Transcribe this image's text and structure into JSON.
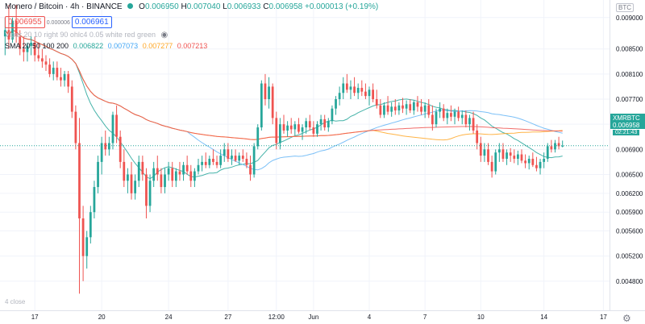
{
  "header": {
    "title": "Monero / Bitcoin · 4h · BINANCE",
    "open_label": "O",
    "open": "0.006950",
    "high_label": "H",
    "high": "0.007040",
    "low_label": "L",
    "low": "0.006933",
    "close_label": "C",
    "close": "0.006958",
    "change": "+0.000013 (+0.19%)",
    "bid": "0.006955",
    "spread": "0.000006",
    "ask": "0.006961",
    "viper_text": "Viper 20 10 right 90 ohlc4 0.05 white red green",
    "sma_label": "SMA 20 50 100 200",
    "sma_values": [
      "0.006822",
      "0.007073",
      "0.007277",
      "0.007213"
    ]
  },
  "axis": {
    "currency": "BTC",
    "last_symbol": "XMRBTC",
    "last_price": "0.006958",
    "countdown": "02:21:43"
  },
  "bottom_note": "4 close",
  "colors": {
    "up": "#26a69a",
    "down": "#ef5350",
    "sma20": "#26a69a",
    "sma50": "#64b5f6",
    "sma100": "#ffa726",
    "sma200": "#ef5350"
  },
  "chart_data": {
    "type": "candlestick",
    "symbol": "XMRBTC",
    "timeframe": "4h",
    "exchange": "BINANCE",
    "ylim": [
      0.0044,
      0.0091
    ],
    "yticks": [
      0.009,
      0.0085,
      0.0081,
      0.0077,
      0.0073,
      0.0069,
      0.0065,
      0.0062,
      0.0059,
      0.0056,
      0.0052,
      0.0048
    ],
    "ytick_labels": [
      "0.009000",
      "0.008500",
      "0.008100",
      "0.007700",
      "0.007300",
      "0.006900",
      "0.006500",
      "0.006200",
      "0.005900",
      "0.005600",
      "0.005200",
      "0.004800"
    ],
    "xticks": [
      {
        "i": 8,
        "label": "17"
      },
      {
        "i": 26,
        "label": "20"
      },
      {
        "i": 44,
        "label": "24"
      },
      {
        "i": 60,
        "label": "27"
      },
      {
        "i": 73,
        "label": "12:00"
      },
      {
        "i": 83,
        "label": "Jun"
      },
      {
        "i": 98,
        "label": "4"
      },
      {
        "i": 113,
        "label": "7"
      },
      {
        "i": 128,
        "label": "10"
      },
      {
        "i": 145,
        "label": "14"
      },
      {
        "i": 161,
        "label": "17"
      }
    ],
    "candles": [
      {
        "o": 0.0087,
        "h": 0.009,
        "l": 0.0084,
        "c": 0.0088
      },
      {
        "o": 0.0088,
        "h": 0.0092,
        "l": 0.0085,
        "c": 0.00865
      },
      {
        "o": 0.00865,
        "h": 0.009,
        "l": 0.0086,
        "c": 0.00895
      },
      {
        "o": 0.00895,
        "h": 0.0092,
        "l": 0.0086,
        "c": 0.0087
      },
      {
        "o": 0.0087,
        "h": 0.0088,
        "l": 0.0084,
        "c": 0.0085
      },
      {
        "o": 0.0085,
        "h": 0.0087,
        "l": 0.0083,
        "c": 0.00845
      },
      {
        "o": 0.00845,
        "h": 0.0086,
        "l": 0.0083,
        "c": 0.00855
      },
      {
        "o": 0.00855,
        "h": 0.0087,
        "l": 0.0084,
        "c": 0.0086
      },
      {
        "o": 0.0086,
        "h": 0.0087,
        "l": 0.0083,
        "c": 0.0084
      },
      {
        "o": 0.0084,
        "h": 0.0086,
        "l": 0.0083,
        "c": 0.00835
      },
      {
        "o": 0.00835,
        "h": 0.0085,
        "l": 0.0082,
        "c": 0.0083
      },
      {
        "o": 0.0083,
        "h": 0.0084,
        "l": 0.00815,
        "c": 0.00825
      },
      {
        "o": 0.00825,
        "h": 0.00835,
        "l": 0.00805,
        "c": 0.0081
      },
      {
        "o": 0.0081,
        "h": 0.0083,
        "l": 0.008,
        "c": 0.0082
      },
      {
        "o": 0.0082,
        "h": 0.0083,
        "l": 0.008,
        "c": 0.00805
      },
      {
        "o": 0.00805,
        "h": 0.0082,
        "l": 0.0079,
        "c": 0.008
      },
      {
        "o": 0.008,
        "h": 0.00815,
        "l": 0.0079,
        "c": 0.0081
      },
      {
        "o": 0.0081,
        "h": 0.00815,
        "l": 0.0078,
        "c": 0.0079
      },
      {
        "o": 0.0079,
        "h": 0.008,
        "l": 0.0074,
        "c": 0.0075
      },
      {
        "o": 0.0075,
        "h": 0.0076,
        "l": 0.0069,
        "c": 0.007
      },
      {
        "o": 0.007,
        "h": 0.0074,
        "l": 0.0046,
        "c": 0.0058
      },
      {
        "o": 0.0058,
        "h": 0.006,
        "l": 0.0048,
        "c": 0.0052
      },
      {
        "o": 0.0052,
        "h": 0.0056,
        "l": 0.005,
        "c": 0.0055
      },
      {
        "o": 0.0055,
        "h": 0.006,
        "l": 0.0054,
        "c": 0.0059
      },
      {
        "o": 0.0059,
        "h": 0.0064,
        "l": 0.0058,
        "c": 0.0063
      },
      {
        "o": 0.0063,
        "h": 0.0068,
        "l": 0.0062,
        "c": 0.0067
      },
      {
        "o": 0.0067,
        "h": 0.0071,
        "l": 0.0065,
        "c": 0.007
      },
      {
        "o": 0.007,
        "h": 0.0072,
        "l": 0.0068,
        "c": 0.0069
      },
      {
        "o": 0.0069,
        "h": 0.0071,
        "l": 0.0068,
        "c": 0.007
      },
      {
        "o": 0.007,
        "h": 0.0075,
        "l": 0.0069,
        "c": 0.00745
      },
      {
        "o": 0.00745,
        "h": 0.0076,
        "l": 0.007,
        "c": 0.0071
      },
      {
        "o": 0.0071,
        "h": 0.0072,
        "l": 0.0066,
        "c": 0.0067
      },
      {
        "o": 0.0067,
        "h": 0.0069,
        "l": 0.0063,
        "c": 0.0064
      },
      {
        "o": 0.0064,
        "h": 0.0066,
        "l": 0.0062,
        "c": 0.0065
      },
      {
        "o": 0.0065,
        "h": 0.0067,
        "l": 0.0061,
        "c": 0.0062
      },
      {
        "o": 0.0062,
        "h": 0.0065,
        "l": 0.0061,
        "c": 0.0064
      },
      {
        "o": 0.0064,
        "h": 0.0068,
        "l": 0.0063,
        "c": 0.0067
      },
      {
        "o": 0.0067,
        "h": 0.0068,
        "l": 0.0064,
        "c": 0.0065
      },
      {
        "o": 0.0065,
        "h": 0.0066,
        "l": 0.0058,
        "c": 0.006
      },
      {
        "o": 0.006,
        "h": 0.0065,
        "l": 0.0059,
        "c": 0.0064
      },
      {
        "o": 0.0064,
        "h": 0.0067,
        "l": 0.0063,
        "c": 0.0066
      },
      {
        "o": 0.0066,
        "h": 0.0068,
        "l": 0.0064,
        "c": 0.0065
      },
      {
        "o": 0.0065,
        "h": 0.0066,
        "l": 0.0062,
        "c": 0.0063
      },
      {
        "o": 0.0063,
        "h": 0.0066,
        "l": 0.0062,
        "c": 0.0065
      },
      {
        "o": 0.0065,
        "h": 0.0067,
        "l": 0.0064,
        "c": 0.0066
      },
      {
        "o": 0.0066,
        "h": 0.0067,
        "l": 0.0063,
        "c": 0.0064
      },
      {
        "o": 0.0064,
        "h": 0.0066,
        "l": 0.0063,
        "c": 0.00655
      },
      {
        "o": 0.00655,
        "h": 0.0067,
        "l": 0.0064,
        "c": 0.0065
      },
      {
        "o": 0.0065,
        "h": 0.0067,
        "l": 0.0064,
        "c": 0.00665
      },
      {
        "o": 0.00665,
        "h": 0.0068,
        "l": 0.0065,
        "c": 0.00655
      },
      {
        "o": 0.00655,
        "h": 0.00665,
        "l": 0.0063,
        "c": 0.0064
      },
      {
        "o": 0.0064,
        "h": 0.0066,
        "l": 0.0063,
        "c": 0.00655
      },
      {
        "o": 0.00655,
        "h": 0.00675,
        "l": 0.0065,
        "c": 0.00665
      },
      {
        "o": 0.00665,
        "h": 0.0068,
        "l": 0.00655,
        "c": 0.0067
      },
      {
        "o": 0.0067,
        "h": 0.00685,
        "l": 0.0066,
        "c": 0.00665
      },
      {
        "o": 0.00665,
        "h": 0.0068,
        "l": 0.0066,
        "c": 0.00675
      },
      {
        "o": 0.00675,
        "h": 0.0069,
        "l": 0.00665,
        "c": 0.0067
      },
      {
        "o": 0.0067,
        "h": 0.0068,
        "l": 0.0066,
        "c": 0.00665
      },
      {
        "o": 0.00665,
        "h": 0.0069,
        "l": 0.0066,
        "c": 0.0068
      },
      {
        "o": 0.0068,
        "h": 0.007,
        "l": 0.0067,
        "c": 0.0069
      },
      {
        "o": 0.0069,
        "h": 0.007,
        "l": 0.0067,
        "c": 0.00675
      },
      {
        "o": 0.00675,
        "h": 0.0069,
        "l": 0.00665,
        "c": 0.0068
      },
      {
        "o": 0.0068,
        "h": 0.0069,
        "l": 0.0067,
        "c": 0.00672
      },
      {
        "o": 0.00672,
        "h": 0.00685,
        "l": 0.00665,
        "c": 0.0068
      },
      {
        "o": 0.0068,
        "h": 0.0069,
        "l": 0.0067,
        "c": 0.00675
      },
      {
        "o": 0.00675,
        "h": 0.00685,
        "l": 0.0066,
        "c": 0.00665
      },
      {
        "o": 0.00665,
        "h": 0.0068,
        "l": 0.0064,
        "c": 0.0065
      },
      {
        "o": 0.0065,
        "h": 0.007,
        "l": 0.00645,
        "c": 0.00695
      },
      {
        "o": 0.00695,
        "h": 0.0073,
        "l": 0.0069,
        "c": 0.00725
      },
      {
        "o": 0.00725,
        "h": 0.008,
        "l": 0.0072,
        "c": 0.00795
      },
      {
        "o": 0.00795,
        "h": 0.0081,
        "l": 0.0076,
        "c": 0.0077
      },
      {
        "o": 0.0077,
        "h": 0.00805,
        "l": 0.00755,
        "c": 0.0079
      },
      {
        "o": 0.0079,
        "h": 0.00795,
        "l": 0.0073,
        "c": 0.0074
      },
      {
        "o": 0.0074,
        "h": 0.0075,
        "l": 0.0069,
        "c": 0.007
      },
      {
        "o": 0.007,
        "h": 0.0074,
        "l": 0.0069,
        "c": 0.0073
      },
      {
        "o": 0.0073,
        "h": 0.00745,
        "l": 0.00715,
        "c": 0.0072
      },
      {
        "o": 0.0072,
        "h": 0.00735,
        "l": 0.0071,
        "c": 0.00728
      },
      {
        "o": 0.00728,
        "h": 0.0074,
        "l": 0.00715,
        "c": 0.00722
      },
      {
        "o": 0.00722,
        "h": 0.00735,
        "l": 0.00712,
        "c": 0.0073
      },
      {
        "o": 0.0073,
        "h": 0.0074,
        "l": 0.00715,
        "c": 0.00718
      },
      {
        "o": 0.00718,
        "h": 0.0073,
        "l": 0.00705,
        "c": 0.00725
      },
      {
        "o": 0.00725,
        "h": 0.0074,
        "l": 0.00715,
        "c": 0.00735
      },
      {
        "o": 0.00735,
        "h": 0.00745,
        "l": 0.0072,
        "c": 0.00725
      },
      {
        "o": 0.00725,
        "h": 0.00735,
        "l": 0.0071,
        "c": 0.00715
      },
      {
        "o": 0.00715,
        "h": 0.00735,
        "l": 0.0071,
        "c": 0.0073
      },
      {
        "o": 0.0073,
        "h": 0.00745,
        "l": 0.0072,
        "c": 0.00738
      },
      {
        "o": 0.00738,
        "h": 0.00745,
        "l": 0.0072,
        "c": 0.00725
      },
      {
        "o": 0.00725,
        "h": 0.0074,
        "l": 0.00718,
        "c": 0.00735
      },
      {
        "o": 0.00735,
        "h": 0.0076,
        "l": 0.0073,
        "c": 0.00755
      },
      {
        "o": 0.00755,
        "h": 0.00775,
        "l": 0.00745,
        "c": 0.0077
      },
      {
        "o": 0.0077,
        "h": 0.0079,
        "l": 0.0076,
        "c": 0.0078
      },
      {
        "o": 0.0078,
        "h": 0.00805,
        "l": 0.0077,
        "c": 0.00795
      },
      {
        "o": 0.00795,
        "h": 0.0081,
        "l": 0.0078,
        "c": 0.00785
      },
      {
        "o": 0.00785,
        "h": 0.008,
        "l": 0.0077,
        "c": 0.0079
      },
      {
        "o": 0.0079,
        "h": 0.00805,
        "l": 0.00775,
        "c": 0.0078
      },
      {
        "o": 0.0078,
        "h": 0.00795,
        "l": 0.0077,
        "c": 0.00788
      },
      {
        "o": 0.00788,
        "h": 0.008,
        "l": 0.00775,
        "c": 0.00782
      },
      {
        "o": 0.00782,
        "h": 0.00795,
        "l": 0.0077,
        "c": 0.00775
      },
      {
        "o": 0.00775,
        "h": 0.0079,
        "l": 0.0076,
        "c": 0.00785
      },
      {
        "o": 0.00785,
        "h": 0.00795,
        "l": 0.00765,
        "c": 0.0077
      },
      {
        "o": 0.0077,
        "h": 0.00785,
        "l": 0.00755,
        "c": 0.0076
      },
      {
        "o": 0.0076,
        "h": 0.0077,
        "l": 0.0074,
        "c": 0.00745
      },
      {
        "o": 0.00745,
        "h": 0.00765,
        "l": 0.0074,
        "c": 0.0076
      },
      {
        "o": 0.0076,
        "h": 0.00775,
        "l": 0.00745,
        "c": 0.0075
      },
      {
        "o": 0.0075,
        "h": 0.00765,
        "l": 0.00742,
        "c": 0.00758
      },
      {
        "o": 0.00758,
        "h": 0.0077,
        "l": 0.00745,
        "c": 0.00752
      },
      {
        "o": 0.00752,
        "h": 0.00765,
        "l": 0.00745,
        "c": 0.0076
      },
      {
        "o": 0.0076,
        "h": 0.00772,
        "l": 0.00748,
        "c": 0.00755
      },
      {
        "o": 0.00755,
        "h": 0.00768,
        "l": 0.00745,
        "c": 0.00762
      },
      {
        "o": 0.00762,
        "h": 0.0077,
        "l": 0.00748,
        "c": 0.00752
      },
      {
        "o": 0.00752,
        "h": 0.00768,
        "l": 0.00745,
        "c": 0.00765
      },
      {
        "o": 0.00765,
        "h": 0.00775,
        "l": 0.0075,
        "c": 0.00758
      },
      {
        "o": 0.00758,
        "h": 0.0077,
        "l": 0.00745,
        "c": 0.0075
      },
      {
        "o": 0.0075,
        "h": 0.00765,
        "l": 0.0074,
        "c": 0.0076
      },
      {
        "o": 0.0076,
        "h": 0.0077,
        "l": 0.0074,
        "c": 0.00745
      },
      {
        "o": 0.00745,
        "h": 0.0076,
        "l": 0.0072,
        "c": 0.0073
      },
      {
        "o": 0.0073,
        "h": 0.00755,
        "l": 0.00725,
        "c": 0.0075
      },
      {
        "o": 0.0075,
        "h": 0.00765,
        "l": 0.0074,
        "c": 0.00755
      },
      {
        "o": 0.00755,
        "h": 0.00762,
        "l": 0.00735,
        "c": 0.0074
      },
      {
        "o": 0.0074,
        "h": 0.00755,
        "l": 0.0073,
        "c": 0.00748
      },
      {
        "o": 0.00748,
        "h": 0.0076,
        "l": 0.00735,
        "c": 0.00742
      },
      {
        "o": 0.00742,
        "h": 0.00755,
        "l": 0.0073,
        "c": 0.0075
      },
      {
        "o": 0.0075,
        "h": 0.00758,
        "l": 0.00735,
        "c": 0.0074
      },
      {
        "o": 0.0074,
        "h": 0.00752,
        "l": 0.0073,
        "c": 0.00745
      },
      {
        "o": 0.00745,
        "h": 0.00752,
        "l": 0.00725,
        "c": 0.0073
      },
      {
        "o": 0.0073,
        "h": 0.00745,
        "l": 0.0072,
        "c": 0.0074
      },
      {
        "o": 0.0074,
        "h": 0.0075,
        "l": 0.00715,
        "c": 0.0072
      },
      {
        "o": 0.0072,
        "h": 0.0073,
        "l": 0.0069,
        "c": 0.007
      },
      {
        "o": 0.007,
        "h": 0.0071,
        "l": 0.0067,
        "c": 0.0068
      },
      {
        "o": 0.0068,
        "h": 0.007,
        "l": 0.0067,
        "c": 0.0069
      },
      {
        "o": 0.0069,
        "h": 0.007,
        "l": 0.00665,
        "c": 0.0067
      },
      {
        "o": 0.0067,
        "h": 0.0068,
        "l": 0.00645,
        "c": 0.00655
      },
      {
        "o": 0.00655,
        "h": 0.0069,
        "l": 0.0065,
        "c": 0.00685
      },
      {
        "o": 0.00685,
        "h": 0.007,
        "l": 0.0067,
        "c": 0.0069
      },
      {
        "o": 0.0069,
        "h": 0.007,
        "l": 0.0067,
        "c": 0.00675
      },
      {
        "o": 0.00675,
        "h": 0.0069,
        "l": 0.00665,
        "c": 0.00685
      },
      {
        "o": 0.00685,
        "h": 0.00692,
        "l": 0.0067,
        "c": 0.0068
      },
      {
        "o": 0.0068,
        "h": 0.0069,
        "l": 0.00668,
        "c": 0.00675
      },
      {
        "o": 0.00675,
        "h": 0.00688,
        "l": 0.00665,
        "c": 0.00682
      },
      {
        "o": 0.00682,
        "h": 0.0069,
        "l": 0.00668,
        "c": 0.00672
      },
      {
        "o": 0.00672,
        "h": 0.00682,
        "l": 0.0066,
        "c": 0.00668
      },
      {
        "o": 0.00668,
        "h": 0.0068,
        "l": 0.00658,
        "c": 0.00675
      },
      {
        "o": 0.00675,
        "h": 0.00685,
        "l": 0.00662,
        "c": 0.00665
      },
      {
        "o": 0.00665,
        "h": 0.00678,
        "l": 0.00655,
        "c": 0.0066
      },
      {
        "o": 0.0066,
        "h": 0.00675,
        "l": 0.0065,
        "c": 0.0067
      },
      {
        "o": 0.0067,
        "h": 0.00685,
        "l": 0.0066,
        "c": 0.00675
      },
      {
        "o": 0.00675,
        "h": 0.007,
        "l": 0.0067,
        "c": 0.00695
      },
      {
        "o": 0.00695,
        "h": 0.00705,
        "l": 0.00685,
        "c": 0.0069
      },
      {
        "o": 0.0069,
        "h": 0.00705,
        "l": 0.00685,
        "c": 0.007
      },
      {
        "o": 0.007,
        "h": 0.0071,
        "l": 0.0069,
        "c": 0.00695
      },
      {
        "o": 0.00695,
        "h": 0.00704,
        "l": 0.006933,
        "c": 0.006958
      }
    ]
  }
}
